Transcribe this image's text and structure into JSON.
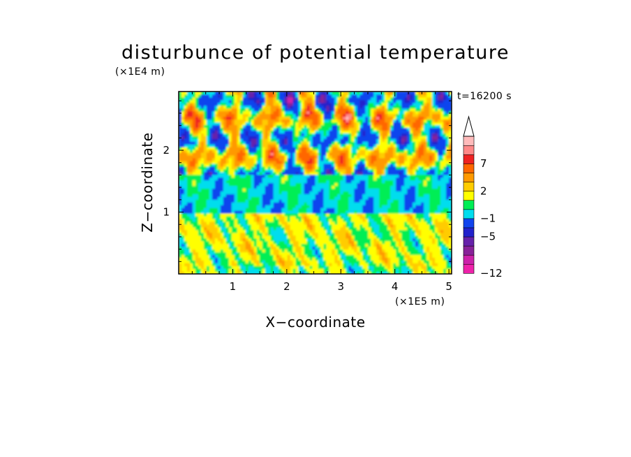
{
  "chart_data": {
    "type": "heatmap",
    "title": "disturbunce of potential temperature",
    "time_label": "t=16200 s",
    "xlabel": "X−coordinate",
    "ylabel": "Z−coordinate",
    "x_unit": "(×1E5 m)",
    "y_unit": "(×1E4 m)",
    "xlim": [
      0,
      5.05
    ],
    "ylim": [
      0,
      2.95
    ],
    "x_ticks": [
      "1",
      "2",
      "3",
      "4",
      "5"
    ],
    "x_tick_values": [
      1,
      2,
      3,
      4,
      5
    ],
    "y_ticks": [
      "1",
      "2"
    ],
    "y_tick_values": [
      1,
      2
    ],
    "colorbar": {
      "levels_labeled": [
        "7",
        "2",
        "−1",
        "−5",
        "−12"
      ],
      "level_values": [
        7,
        2,
        -1,
        -5,
        -12
      ],
      "colors_bottom_to_top": [
        "#ee22aa",
        "#cc22aa",
        "#882299",
        "#6622aa",
        "#2222cc",
        "#1144ee",
        "#00ddee",
        "#00ee55",
        "#ffff00",
        "#ffcc00",
        "#ff9900",
        "#ff6600",
        "#ee2222",
        "#ff8888",
        "#ffbbbb"
      ],
      "extend": "max"
    },
    "regions": [
      {
        "z_range": [
          0,
          1.0
        ],
        "dominant": "yellow with orange and green patches (~0 to 3)"
      },
      {
        "z_range": [
          1.0,
          1.6
        ],
        "dominant": "green band (~-1 to 0)"
      },
      {
        "z_range": [
          1.6,
          2.95
        ],
        "dominant": "alternating orange/red and blue cells (~-5 to 7)"
      }
    ]
  }
}
